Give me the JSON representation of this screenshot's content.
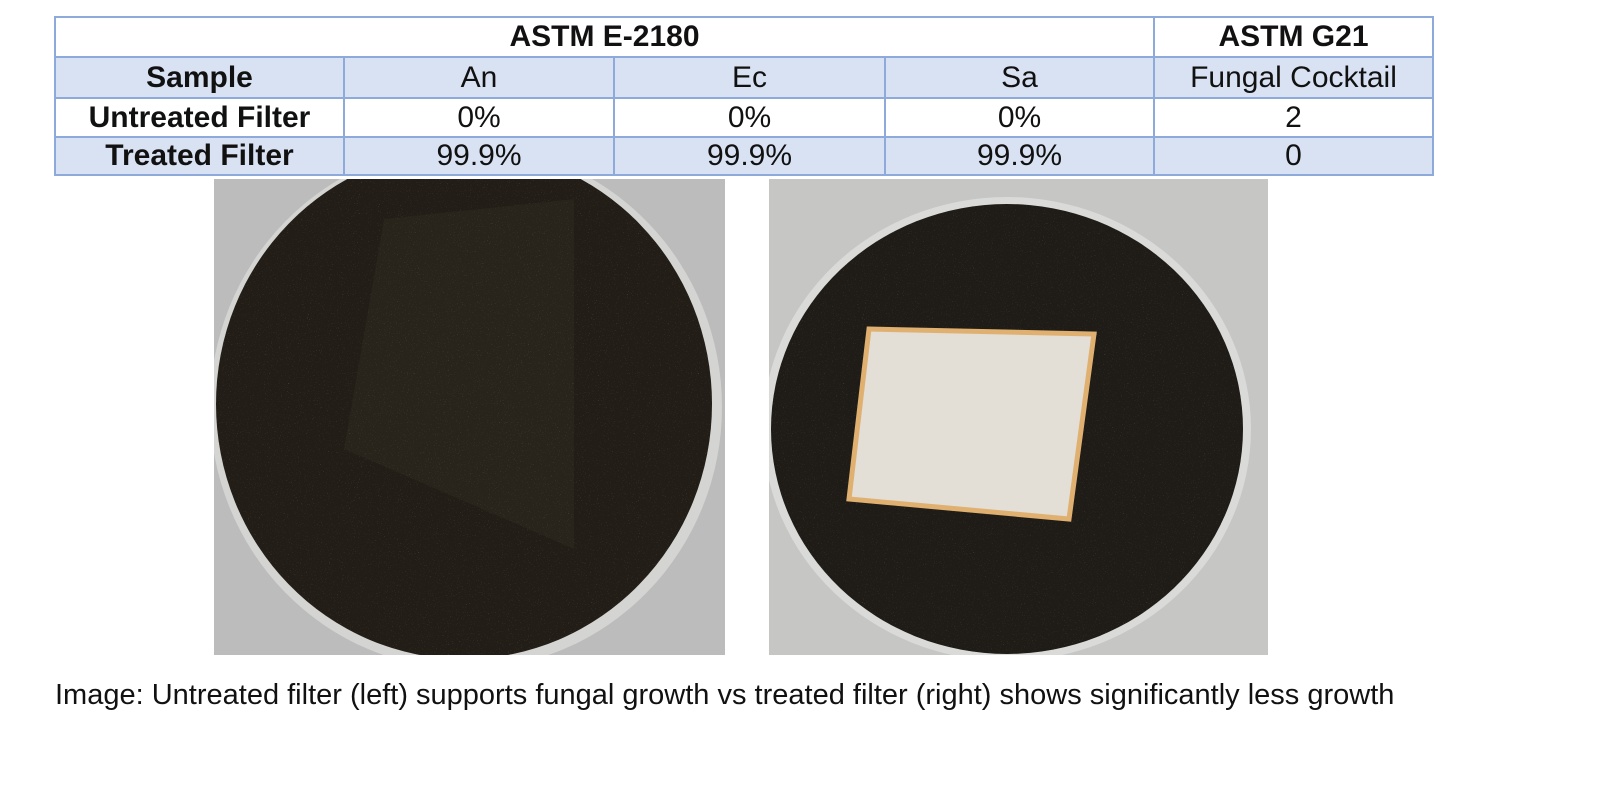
{
  "table": {
    "group_headers": [
      "ASTM E-2180",
      "ASTM G21"
    ],
    "columns": [
      "Sample",
      "An",
      "Ec",
      "Sa",
      "Fungal Cocktail"
    ],
    "rows": [
      [
        "Untreated Filter",
        "0%",
        "0%",
        "0%",
        "2"
      ],
      [
        "Treated Filter",
        "99.9%",
        "99.9%",
        "99.9%",
        "0"
      ]
    ]
  },
  "caption": "Image: Untreated filter (left) supports fungal growth vs treated filter (right) shows significantly less growth"
}
